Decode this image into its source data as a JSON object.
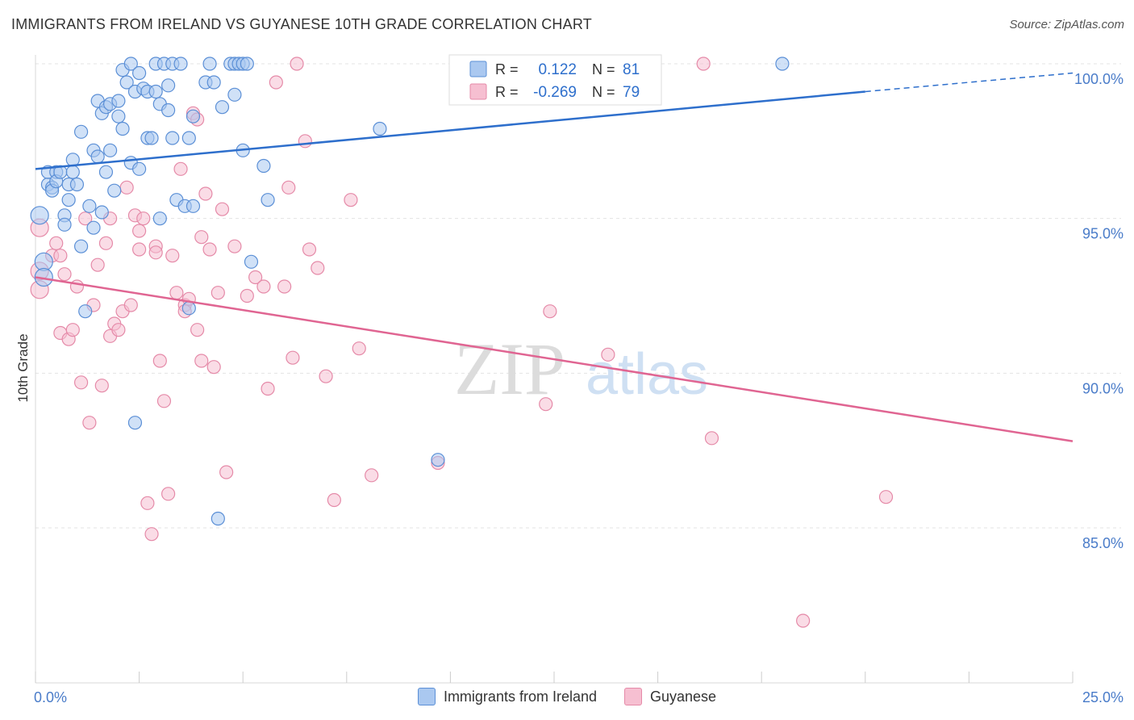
{
  "header": {
    "title": "IMMIGRANTS FROM IRELAND VS GUYANESE 10TH GRADE CORRELATION CHART",
    "source": "Source: ZipAtlas.com"
  },
  "watermark": {
    "zip": "ZIP",
    "atlas": "atlas"
  },
  "stats": [
    {
      "r_label": "R =",
      "r_value": "0.122",
      "n_label": "N =",
      "n_value": "81"
    },
    {
      "r_label": "R =",
      "r_value": "-0.269",
      "n_label": "N =",
      "n_value": "79"
    }
  ],
  "colors": {
    "blue_fill": "#aac8f0",
    "blue_stroke": "#5b8fd6",
    "blue_line": "#2e6fcc",
    "pink_fill": "#f6bfd1",
    "pink_stroke": "#e58aa8",
    "pink_line": "#e06592",
    "tick_text": "#4a7cc9",
    "grid": "#e3e3e3"
  },
  "chart_data": {
    "type": "scatter",
    "title": "IMMIGRANTS FROM IRELAND VS GUYANESE 10TH GRADE CORRELATION CHART",
    "xlabel": "",
    "ylabel": "10th Grade",
    "xlim": [
      0,
      25
    ],
    "ylim": [
      80.5,
      100.5
    ],
    "x_tick_labels": [
      {
        "value": 0,
        "label": "0.0%"
      },
      {
        "value": 25,
        "label": "25.0%"
      }
    ],
    "y_tick_labels": [
      {
        "value": 100,
        "label": "100.0%"
      },
      {
        "value": 95,
        "label": "95.0%"
      },
      {
        "value": 90,
        "label": "90.0%"
      },
      {
        "value": 85,
        "label": "85.0%"
      }
    ],
    "legend_position": "bottom-center",
    "series": [
      {
        "name": "Immigrants from Ireland",
        "color": "blue",
        "trend": {
          "x0": 0,
          "y0": 96.6,
          "x1": 20,
          "y1": 99.1,
          "dash_to_x": 25,
          "dash_to_y": 99.7
        },
        "points": [
          [
            0.1,
            95.1
          ],
          [
            0.2,
            93.6
          ],
          [
            0.2,
            93.1
          ],
          [
            0.3,
            96.1
          ],
          [
            0.3,
            96.5
          ],
          [
            0.4,
            96.0
          ],
          [
            0.4,
            95.9
          ],
          [
            0.5,
            96.5
          ],
          [
            0.5,
            96.2
          ],
          [
            0.6,
            96.5
          ],
          [
            0.7,
            95.1
          ],
          [
            0.7,
            94.8
          ],
          [
            0.8,
            95.6
          ],
          [
            0.8,
            96.1
          ],
          [
            0.9,
            96.5
          ],
          [
            0.9,
            96.9
          ],
          [
            1.0,
            96.1
          ],
          [
            1.1,
            97.8
          ],
          [
            1.1,
            94.1
          ],
          [
            1.2,
            92.0
          ],
          [
            1.3,
            95.4
          ],
          [
            1.4,
            94.7
          ],
          [
            1.4,
            97.2
          ],
          [
            1.5,
            98.8
          ],
          [
            1.5,
            97.0
          ],
          [
            1.6,
            98.4
          ],
          [
            1.6,
            95.2
          ],
          [
            1.7,
            96.5
          ],
          [
            1.7,
            98.6
          ],
          [
            1.8,
            97.2
          ],
          [
            1.8,
            98.7
          ],
          [
            1.9,
            95.9
          ],
          [
            2.0,
            98.8
          ],
          [
            2.0,
            98.3
          ],
          [
            2.1,
            97.9
          ],
          [
            2.1,
            99.8
          ],
          [
            2.2,
            99.4
          ],
          [
            2.3,
            96.8
          ],
          [
            2.3,
            100.0
          ],
          [
            2.4,
            88.4
          ],
          [
            2.4,
            99.1
          ],
          [
            2.5,
            99.7
          ],
          [
            2.5,
            96.6
          ],
          [
            2.6,
            99.2
          ],
          [
            2.7,
            97.6
          ],
          [
            2.7,
            99.1
          ],
          [
            2.8,
            97.6
          ],
          [
            2.9,
            100.0
          ],
          [
            2.9,
            99.1
          ],
          [
            3.0,
            98.7
          ],
          [
            3.0,
            95.0
          ],
          [
            3.1,
            100.0
          ],
          [
            3.2,
            99.3
          ],
          [
            3.2,
            98.5
          ],
          [
            3.3,
            100.0
          ],
          [
            3.3,
            97.6
          ],
          [
            3.4,
            95.6
          ],
          [
            3.5,
            100.0
          ],
          [
            3.6,
            95.4
          ],
          [
            3.7,
            97.6
          ],
          [
            3.7,
            92.1
          ],
          [
            3.8,
            95.4
          ],
          [
            3.8,
            98.3
          ],
          [
            4.1,
            99.4
          ],
          [
            4.2,
            100.0
          ],
          [
            4.3,
            99.4
          ],
          [
            4.4,
            85.3
          ],
          [
            4.5,
            98.6
          ],
          [
            4.7,
            100.0
          ],
          [
            4.8,
            100.0
          ],
          [
            4.8,
            99.0
          ],
          [
            4.9,
            100.0
          ],
          [
            5.0,
            100.0
          ],
          [
            5.0,
            97.2
          ],
          [
            5.1,
            100.0
          ],
          [
            5.2,
            93.6
          ],
          [
            5.5,
            96.7
          ],
          [
            5.6,
            95.6
          ],
          [
            8.3,
            97.9
          ],
          [
            9.7,
            87.2
          ],
          [
            18.0,
            100.0
          ]
        ]
      },
      {
        "name": "Guyanese",
        "color": "pink",
        "trend": {
          "x0": 0,
          "y0": 93.1,
          "x1": 25,
          "y1": 87.8
        },
        "points": [
          [
            0.1,
            94.7
          ],
          [
            0.1,
            92.7
          ],
          [
            0.1,
            93.3
          ],
          [
            0.4,
            93.8
          ],
          [
            0.5,
            94.2
          ],
          [
            0.6,
            93.8
          ],
          [
            0.6,
            91.3
          ],
          [
            0.7,
            93.2
          ],
          [
            0.8,
            91.1
          ],
          [
            0.9,
            91.4
          ],
          [
            1.0,
            92.8
          ],
          [
            1.1,
            89.7
          ],
          [
            1.2,
            95.0
          ],
          [
            1.3,
            88.4
          ],
          [
            1.4,
            92.2
          ],
          [
            1.5,
            93.5
          ],
          [
            1.6,
            89.6
          ],
          [
            1.7,
            94.2
          ],
          [
            1.8,
            95.0
          ],
          [
            1.8,
            91.2
          ],
          [
            1.9,
            91.6
          ],
          [
            2.0,
            91.4
          ],
          [
            2.1,
            92.0
          ],
          [
            2.2,
            96.0
          ],
          [
            2.3,
            92.2
          ],
          [
            2.4,
            95.1
          ],
          [
            2.5,
            94.6
          ],
          [
            2.5,
            94.0
          ],
          [
            2.6,
            95.0
          ],
          [
            2.7,
            85.8
          ],
          [
            2.8,
            84.8
          ],
          [
            2.9,
            94.1
          ],
          [
            2.9,
            93.9
          ],
          [
            3.0,
            90.4
          ],
          [
            3.1,
            89.1
          ],
          [
            3.2,
            86.1
          ],
          [
            3.3,
            93.8
          ],
          [
            3.4,
            92.6
          ],
          [
            3.5,
            96.6
          ],
          [
            3.6,
            92.2
          ],
          [
            3.6,
            92.0
          ],
          [
            3.7,
            92.4
          ],
          [
            3.8,
            98.4
          ],
          [
            3.9,
            91.4
          ],
          [
            3.9,
            98.2
          ],
          [
            4.0,
            94.4
          ],
          [
            4.0,
            90.4
          ],
          [
            4.1,
            95.8
          ],
          [
            4.2,
            94.0
          ],
          [
            4.3,
            90.2
          ],
          [
            4.4,
            92.6
          ],
          [
            4.5,
            95.3
          ],
          [
            4.6,
            86.8
          ],
          [
            4.8,
            94.1
          ],
          [
            5.1,
            92.5
          ],
          [
            5.3,
            93.1
          ],
          [
            5.5,
            92.8
          ],
          [
            5.6,
            89.5
          ],
          [
            5.8,
            99.4
          ],
          [
            6.0,
            92.8
          ],
          [
            6.1,
            96.0
          ],
          [
            6.2,
            90.5
          ],
          [
            6.3,
            100.0
          ],
          [
            6.5,
            97.5
          ],
          [
            6.6,
            94.0
          ],
          [
            6.8,
            93.4
          ],
          [
            7.0,
            89.9
          ],
          [
            7.2,
            85.9
          ],
          [
            7.6,
            95.6
          ],
          [
            7.8,
            90.8
          ],
          [
            8.1,
            86.7
          ],
          [
            9.7,
            87.1
          ],
          [
            12.3,
            89.0
          ],
          [
            12.4,
            92.0
          ],
          [
            13.8,
            90.6
          ],
          [
            16.1,
            100.0
          ],
          [
            16.3,
            87.9
          ],
          [
            18.5,
            82.0
          ],
          [
            20.5,
            86.0
          ]
        ]
      }
    ]
  },
  "legend": [
    {
      "label": "Immigrants from Ireland"
    },
    {
      "label": "Guyanese"
    }
  ]
}
